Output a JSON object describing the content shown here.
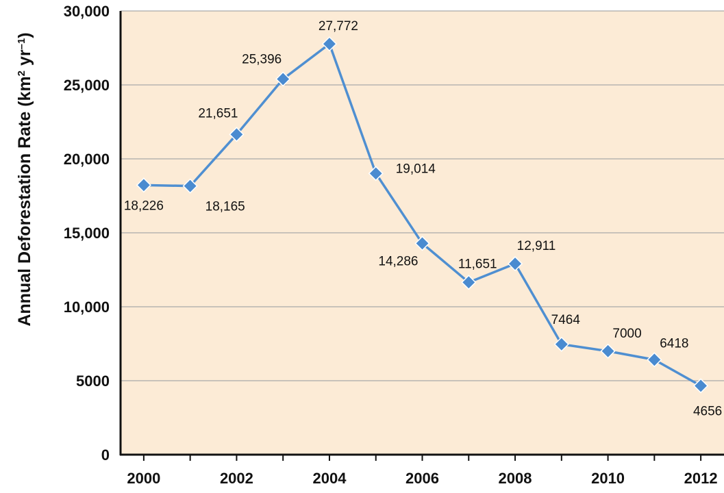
{
  "chart_data": {
    "type": "line",
    "title": "",
    "xlabel": "",
    "ylabel": {
      "main": "Annual Deforestation Rate (km",
      "sup1": "2",
      "mid": " yr",
      "sup2": "–1",
      "end": ")"
    },
    "x": [
      2000,
      2001,
      2002,
      2003,
      2004,
      2005,
      2006,
      2007,
      2008,
      2009,
      2010,
      2011,
      2012
    ],
    "series": [
      {
        "values": [
          18226,
          18165,
          21651,
          25396,
          27772,
          19014,
          14286,
          11651,
          12911,
          7464,
          7000,
          6418,
          4656
        ],
        "labels": [
          "18,226",
          "18,165",
          "21,651",
          "25,396",
          "27,772",
          "19,014",
          "14,286",
          "11,651",
          "12,911",
          "7464",
          "7000",
          "6418",
          "4656"
        ]
      }
    ],
    "xlim": [
      1999.5,
      2012.5
    ],
    "ylim": [
      0,
      30000
    ],
    "y_ticks": [
      0,
      5000,
      10000,
      15000,
      20000,
      25000,
      30000
    ],
    "y_tick_labels": [
      "0",
      "5000",
      "10,000",
      "15,000",
      "20,000",
      "25,000",
      "30,000"
    ],
    "x_ticks": [
      2000,
      2001,
      2002,
      2003,
      2004,
      2005,
      2006,
      2007,
      2008,
      2009,
      2010,
      2011,
      2012
    ],
    "x_tick_labels": [
      "2000",
      "",
      "2002",
      "",
      "2004",
      "",
      "2006",
      "",
      "2008",
      "",
      "2010",
      "",
      "2012"
    ],
    "grid": "horizontal",
    "legend": "none",
    "colors": {
      "plot_background": "#fcebd6",
      "line": "#4f8fd1",
      "marker": "#4a8bd0",
      "marker_edge": "#ffffff",
      "gridline": "#a9a9a9",
      "axis": "#111111"
    }
  }
}
